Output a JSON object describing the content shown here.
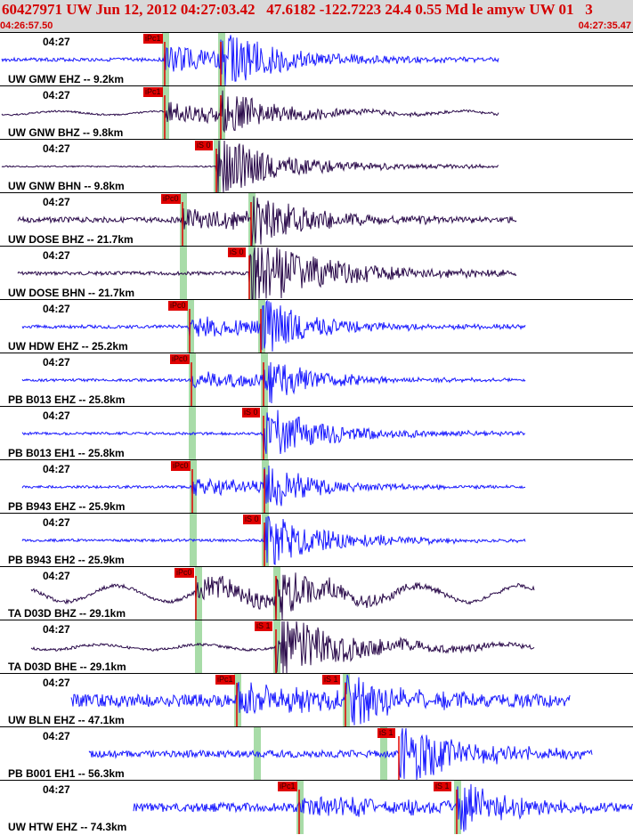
{
  "header": {
    "title": "60427971 UW Jun 12, 2012 04:27:03.42   47.6182 -122.7223 24.4 0.55 Md le amyw UW 01   3",
    "start_time": "04:26:57.50",
    "end_time": "04:27:35.47"
  },
  "colors": {
    "trace_blue": "#1a1aff",
    "trace_dark": "#2a0a4a",
    "pick_red": "#e00000",
    "marker_green": "#a8dca8"
  },
  "traces": [
    {
      "time_label": "04:27",
      "station_label": "UW GMW EHZ -- 9.2km",
      "pick_label": "iPc1",
      "color": "blue"
    },
    {
      "time_label": "04:27",
      "station_label": "UW GNW BHZ -- 9.8km",
      "pick_label": "iPc1",
      "color": "dark"
    },
    {
      "time_label": "04:27",
      "station_label": "UW GNW BHN -- 9.8km",
      "pick_label": "iS 0",
      "color": "dark"
    },
    {
      "time_label": "04:27",
      "station_label": "UW DOSE BHZ -- 21.7km",
      "pick_label": "iPc0",
      "color": "dark"
    },
    {
      "time_label": "04:27",
      "station_label": "UW DOSE BHN -- 21.7km",
      "pick_label": "iS 0",
      "color": "dark"
    },
    {
      "time_label": "04:27",
      "station_label": "UW HDW EHZ -- 25.2km",
      "pick_label": "iPc0",
      "color": "blue"
    },
    {
      "time_label": "04:27",
      "station_label": "PB B013 EHZ -- 25.8km",
      "pick_label": "iPc0",
      "color": "blue"
    },
    {
      "time_label": "04:27",
      "station_label": "PB B013 EH1 -- 25.8km",
      "pick_label": "iS 0",
      "color": "blue"
    },
    {
      "time_label": "04:27",
      "station_label": "PB B943 EHZ -- 25.9km",
      "pick_label": "iPc0",
      "color": "blue"
    },
    {
      "time_label": "04:27",
      "station_label": "PB B943 EH2 -- 25.9km",
      "pick_label": "iS 0",
      "color": "blue"
    },
    {
      "time_label": "04:27",
      "station_label": "TA D03D BHZ -- 29.1km",
      "pick_label": "iPc0",
      "color": "dark"
    },
    {
      "time_label": "04:27",
      "station_label": "TA D03D BHE -- 29.1km",
      "pick_label": "iS 1",
      "color": "dark"
    },
    {
      "time_label": "04:27",
      "station_label": "UW BLN EHZ -- 47.1km",
      "pick_label": "iPc1",
      "pick_label_2": "iS 1",
      "color": "blue"
    },
    {
      "time_label": "04:27",
      "station_label": "PB B001 EH1 -- 56.3km",
      "pick_label": "iS 1",
      "color": "blue"
    },
    {
      "time_label": "04:27",
      "station_label": "UW HTW EHZ -- 74.3km",
      "pick_label": "iPc1",
      "pick_label_2": "iS 1",
      "color": "blue"
    }
  ]
}
